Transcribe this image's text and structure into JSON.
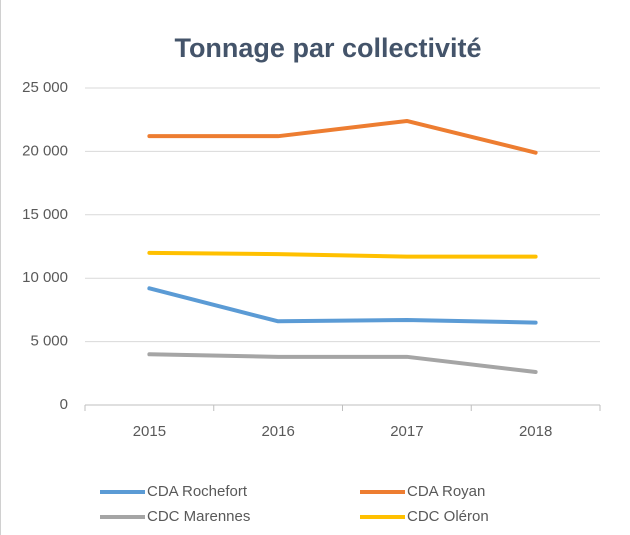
{
  "chart_data": {
    "type": "line",
    "title": "Tonnage par collectivité",
    "categories": [
      "2015",
      "2016",
      "2017",
      "2018"
    ],
    "series": [
      {
        "name": "CDA Rochefort",
        "color": "#5b9bd5",
        "values": [
          9200,
          6600,
          6700,
          6500
        ]
      },
      {
        "name": "CDA Royan",
        "color": "#ed7d31",
        "values": [
          21200,
          21200,
          22400,
          19900
        ]
      },
      {
        "name": "CDC Marennes",
        "color": "#a5a5a5",
        "values": [
          4000,
          3800,
          3800,
          2600
        ]
      },
      {
        "name": "CDC Oléron",
        "color": "#ffc000",
        "values": [
          12000,
          11900,
          11700,
          11700
        ]
      }
    ],
    "ylim": [
      0,
      25000
    ],
    "yticks": [
      0,
      {
        "value": 5000,
        "label": "5 000"
      },
      {
        "value": 10000,
        "label": "10 000"
      },
      {
        "value": 15000,
        "label": "15 000"
      },
      {
        "value": 20000,
        "label": "20 000"
      },
      {
        "value": 25000,
        "label": "25 000"
      }
    ],
    "grid": true
  }
}
